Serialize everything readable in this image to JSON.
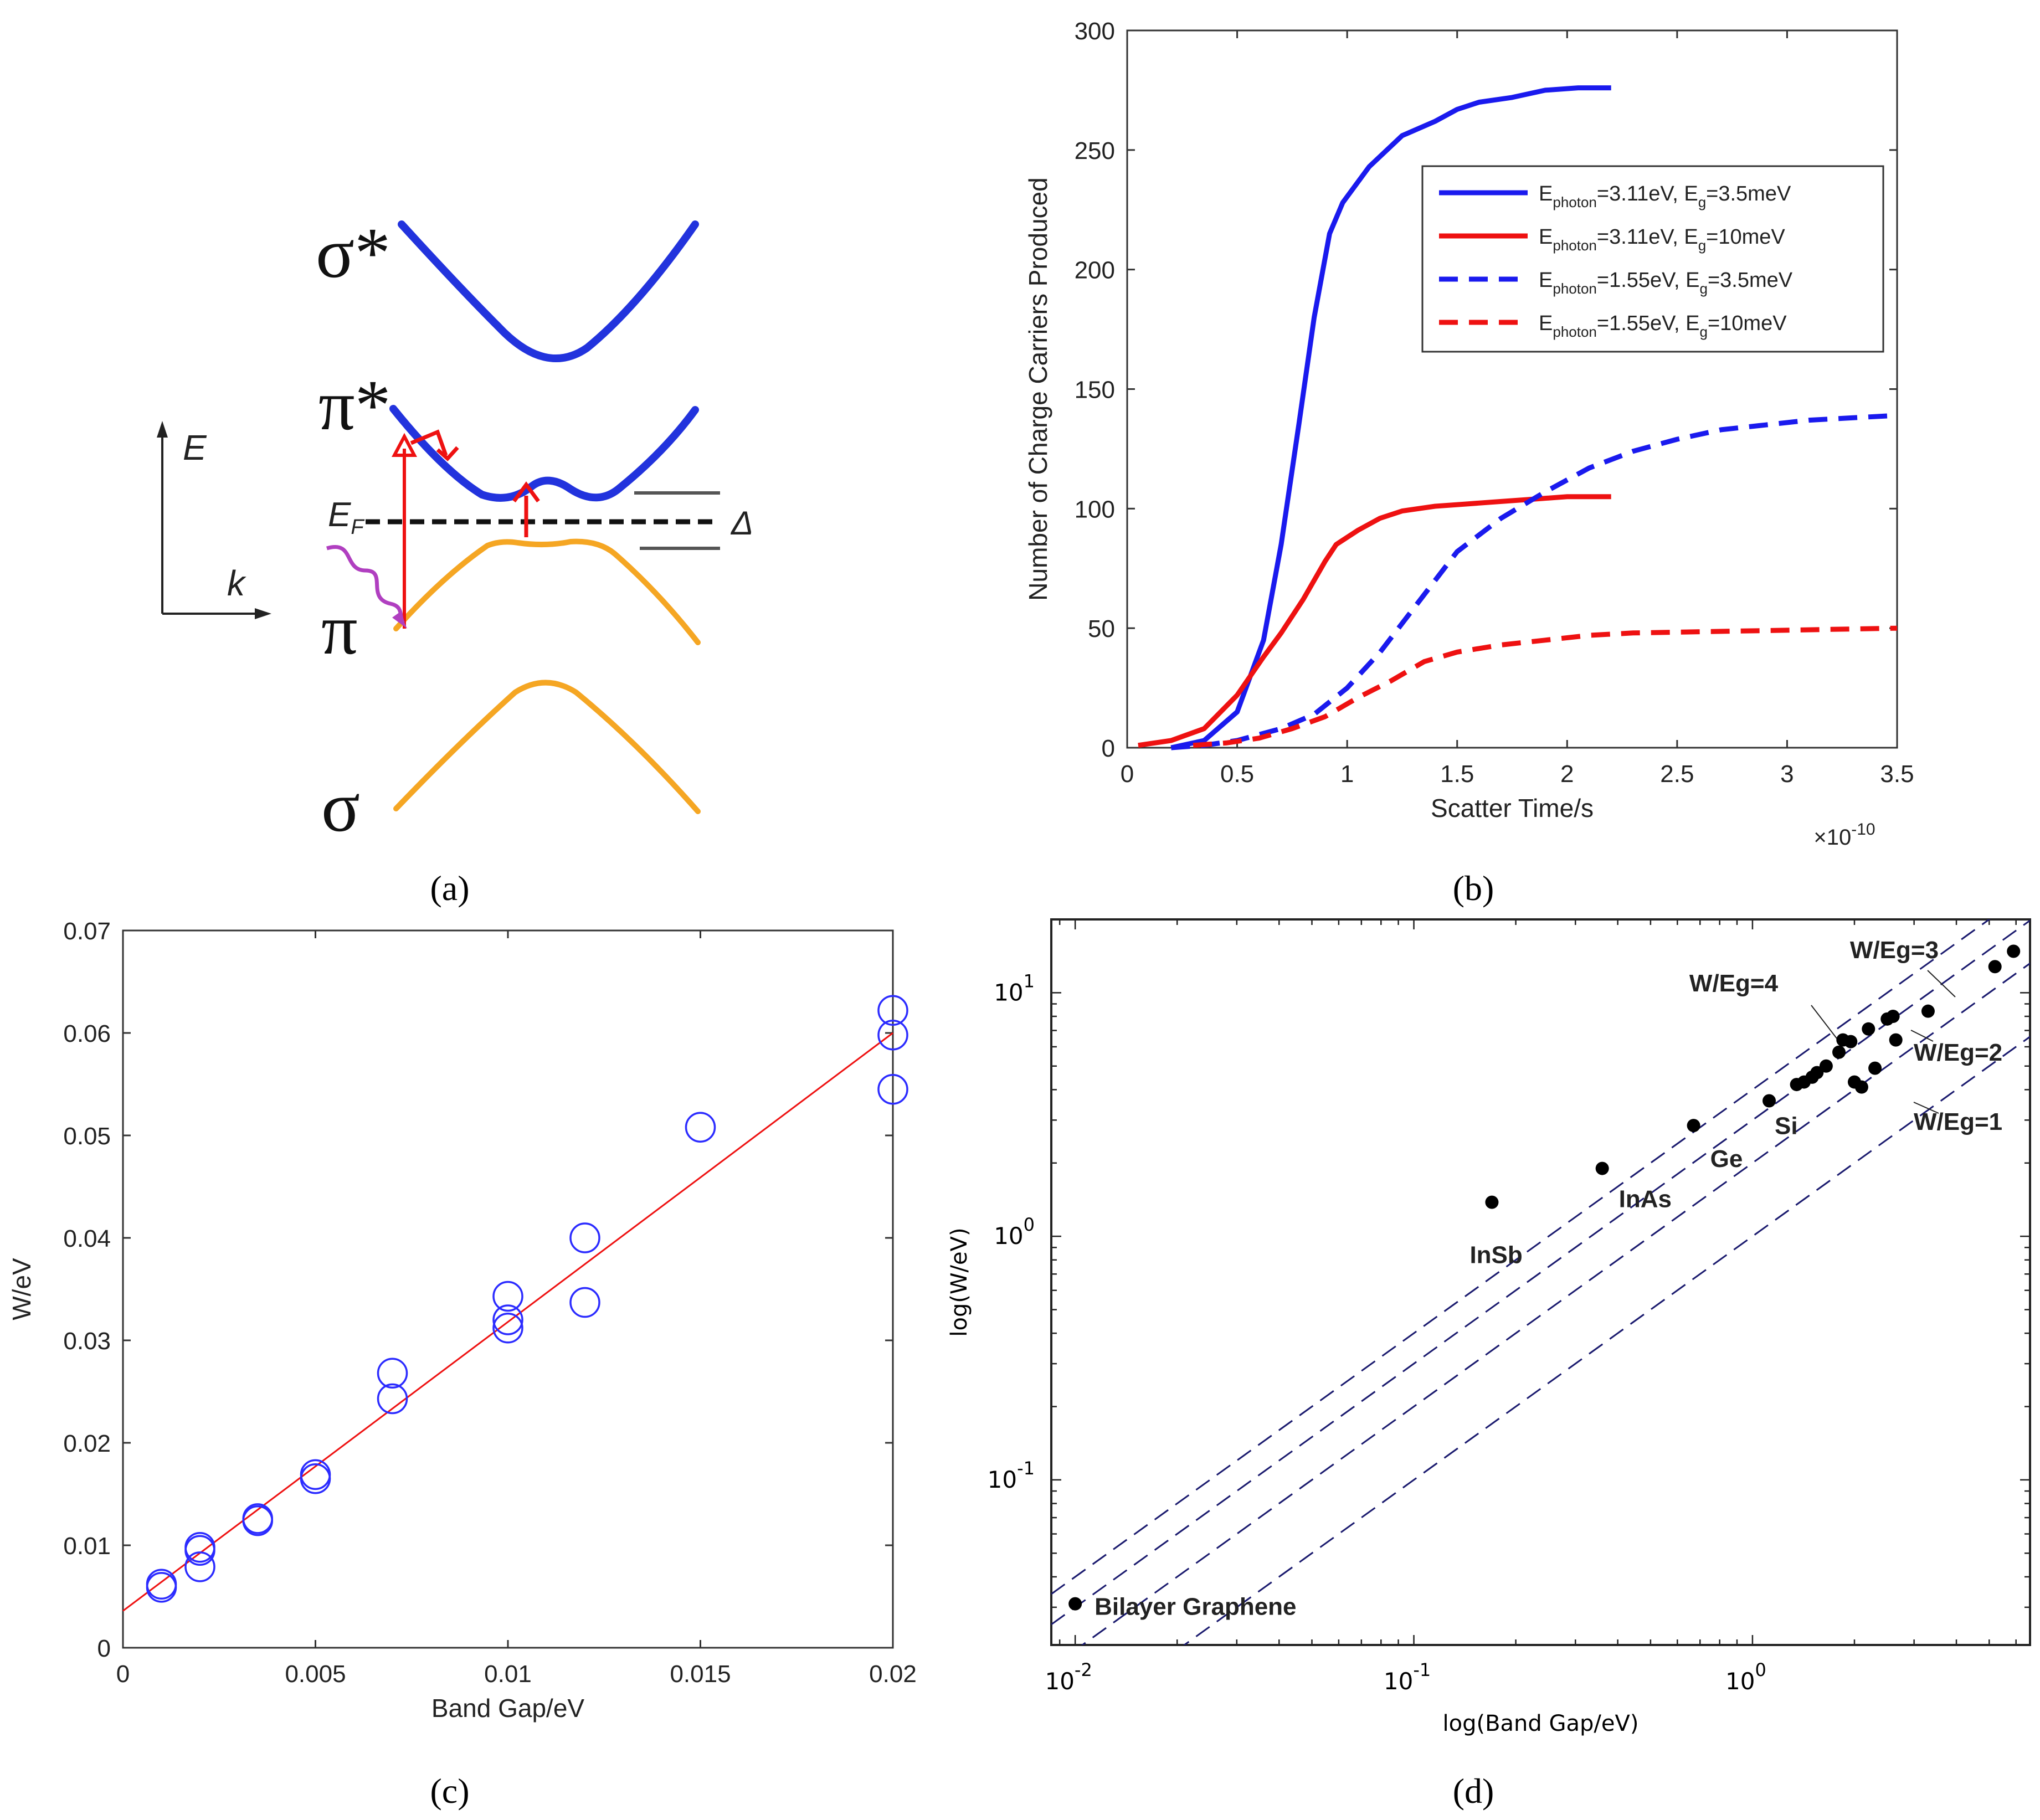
{
  "panel_labels": {
    "a": "(a)",
    "b": "(b)",
    "c": "(c)",
    "d": "(d)"
  },
  "colors": {
    "blue": "#2233dd",
    "red": "#ee1111",
    "orange": "#f5a623",
    "purple": "#b03fc0",
    "navy": "#1a1a6e",
    "circle": "#2b2bff"
  },
  "panel_a": {
    "band_labels": {
      "sigma_star": "σ*",
      "pi_star": "π*",
      "pi": "π",
      "sigma": "σ"
    },
    "axis_e": "E",
    "axis_k": "k",
    "fermi": "E",
    "fermi_sub": "F",
    "gap": "Δ"
  },
  "chart_data": [
    {
      "panel": "b",
      "type": "line",
      "xlabel": "Scatter Time/s",
      "ylabel": "Number of Charge Carriers Produced",
      "x_multiplier": "×10",
      "x_multiplier_exp": "-10",
      "xlim": [
        0,
        3.5
      ],
      "ylim": [
        0,
        300
      ],
      "xticks": [
        0,
        0.5,
        1,
        1.5,
        2,
        2.5,
        3,
        3.5
      ],
      "xtick_labels": [
        "0",
        "0.5",
        "1",
        "1.5",
        "2",
        "2.5",
        "3",
        "3.5"
      ],
      "yticks": [
        0,
        50,
        100,
        150,
        200,
        250,
        300
      ],
      "ytick_labels": [
        "0",
        "50",
        "100",
        "150",
        "200",
        "250",
        "300"
      ],
      "legend": "top-right",
      "series": [
        {
          "name": "E_photon=3.11eV, E_g=3.5meV",
          "label_main": "E",
          "label_sub": "photon",
          "label_mid": "=3.11eV, E",
          "label_sub2": "g",
          "label_end": "=3.5meV",
          "color": "#1a1aee",
          "dash": false,
          "x": [
            0.2,
            0.35,
            0.5,
            0.62,
            0.7,
            0.78,
            0.85,
            0.92,
            0.98,
            1.1,
            1.25,
            1.4,
            1.5,
            1.6,
            1.75,
            1.9,
            2.05,
            2.2
          ],
          "y": [
            0,
            3,
            15,
            45,
            85,
            135,
            180,
            215,
            228,
            243,
            256,
            262,
            267,
            270,
            272,
            275,
            276,
            276
          ]
        },
        {
          "name": "E_photon=3.11eV, E_g=10meV",
          "label_main": "E",
          "label_sub": "photon",
          "label_mid": "=3.11eV, E",
          "label_sub2": "g",
          "label_end": "=10meV",
          "color": "#ee1111",
          "dash": false,
          "x": [
            0.05,
            0.2,
            0.35,
            0.5,
            0.62,
            0.7,
            0.8,
            0.9,
            0.95,
            1.05,
            1.15,
            1.25,
            1.4,
            1.55,
            1.7,
            1.85,
            2.0,
            2.2
          ],
          "y": [
            1,
            3,
            8,
            22,
            38,
            48,
            62,
            78,
            85,
            91,
            96,
            99,
            101,
            102,
            103,
            104,
            105,
            105
          ]
        },
        {
          "name": "E_photon=1.55eV, E_g=3.5meV",
          "label_main": "E",
          "label_sub": "photon",
          "label_mid": "=1.55eV, E",
          "label_sub2": "g",
          "label_end": "=3.5meV",
          "color": "#1a1aee",
          "dash": true,
          "x": [
            0.2,
            0.35,
            0.5,
            0.7,
            0.85,
            1.0,
            1.15,
            1.3,
            1.5,
            1.7,
            1.9,
            2.1,
            2.3,
            2.5,
            2.7,
            2.9,
            3.1,
            3.3,
            3.5
          ],
          "y": [
            0,
            1,
            3,
            8,
            14,
            25,
            40,
            58,
            82,
            96,
            107,
            117,
            124,
            129,
            133,
            135,
            137,
            138,
            139
          ]
        },
        {
          "name": "E_photon=1.55eV, E_g=10meV",
          "label_main": "E",
          "label_sub": "photon",
          "label_mid": "=1.55eV, E",
          "label_sub2": "g",
          "label_end": "=10meV",
          "color": "#ee1111",
          "dash": true,
          "x": [
            0.3,
            0.45,
            0.6,
            0.75,
            0.9,
            1.05,
            1.2,
            1.35,
            1.5,
            1.7,
            1.9,
            2.1,
            2.3,
            2.6,
            2.9,
            3.2,
            3.5
          ],
          "y": [
            1,
            2,
            4,
            8,
            13,
            21,
            28,
            36,
            40,
            43,
            45,
            47,
            48,
            48.5,
            49,
            49.5,
            50
          ]
        }
      ]
    },
    {
      "panel": "c",
      "type": "scatter",
      "xlabel": "Band Gap/eV",
      "ylabel": "W/eV",
      "xlim": [
        0,
        0.02
      ],
      "ylim": [
        0,
        0.07
      ],
      "xticks": [
        0,
        0.005,
        0.01,
        0.015,
        0.02
      ],
      "xtick_labels": [
        "0",
        "0.005",
        "0.01",
        "0.015",
        "0.02"
      ],
      "yticks": [
        0,
        0.01,
        0.02,
        0.03,
        0.04,
        0.05,
        0.06,
        0.07
      ],
      "ytick_labels": [
        "0",
        "0.01",
        "0.02",
        "0.03",
        "0.04",
        "0.05",
        "0.06",
        "0.07"
      ],
      "points": [
        [
          0.001,
          0.0062
        ],
        [
          0.001,
          0.0059
        ],
        [
          0.002,
          0.0098
        ],
        [
          0.002,
          0.0095
        ],
        [
          0.002,
          0.0079
        ],
        [
          0.0035,
          0.0124
        ],
        [
          0.0035,
          0.0126
        ],
        [
          0.005,
          0.0169
        ],
        [
          0.005,
          0.0165
        ],
        [
          0.007,
          0.0268
        ],
        [
          0.007,
          0.0243
        ],
        [
          0.01,
          0.0343
        ],
        [
          0.01,
          0.032
        ],
        [
          0.01,
          0.0312
        ],
        [
          0.012,
          0.04
        ],
        [
          0.012,
          0.0337
        ],
        [
          0.015,
          0.0508
        ],
        [
          0.02,
          0.0622
        ],
        [
          0.02,
          0.0598
        ],
        [
          0.02,
          0.0545
        ]
      ],
      "fit_line": {
        "x": [
          0,
          0.02
        ],
        "y": [
          0.0036,
          0.06
        ],
        "color": "#ee1111"
      }
    },
    {
      "panel": "d",
      "type": "scatter",
      "scale": "log-log",
      "xlabel": "log(Band Gap/eV)",
      "ylabel": "log(W/eV)",
      "xlim": [
        0.0085,
        6.6
      ],
      "ylim": [
        0.021,
        20
      ],
      "xtick_base": [
        "10",
        "10",
        "10"
      ],
      "xtick_exp": [
        "-2",
        "-1",
        "0"
      ],
      "xtick_values": [
        0.01,
        0.1,
        1
      ],
      "ytick_base": [
        "10",
        "10",
        "10"
      ],
      "ytick_exp": [
        "-1",
        "0",
        "1"
      ],
      "ytick_values": [
        0.1,
        1,
        10
      ],
      "ref_lines": [
        {
          "ratio": 4,
          "label": "W/Eg=4"
        },
        {
          "ratio": 3,
          "label": "W/Eg=3"
        },
        {
          "ratio": 2,
          "label": "W/Eg=2"
        },
        {
          "ratio": 1,
          "label": "W/Eg=1"
        }
      ],
      "points": [
        [
          0.01,
          0.031
        ],
        [
          0.17,
          1.38
        ],
        [
          0.36,
          1.9
        ],
        [
          0.67,
          2.85
        ],
        [
          1.12,
          3.6
        ],
        [
          1.35,
          4.2
        ],
        [
          1.42,
          4.3
        ],
        [
          1.5,
          4.5
        ],
        [
          1.55,
          4.7
        ],
        [
          1.65,
          5.0
        ],
        [
          1.8,
          5.7
        ],
        [
          1.85,
          6.4
        ],
        [
          1.95,
          6.3
        ],
        [
          2.0,
          4.3
        ],
        [
          2.1,
          4.1
        ],
        [
          2.2,
          7.1
        ],
        [
          2.3,
          4.9
        ],
        [
          2.5,
          7.8
        ],
        [
          2.6,
          8.0
        ],
        [
          2.65,
          6.4
        ],
        [
          3.3,
          8.4
        ],
        [
          5.2,
          12.8
        ],
        [
          5.9,
          14.8
        ]
      ],
      "point_labels": [
        {
          "name": "Bilayer Graphene",
          "x": 0.01,
          "y": 0.031
        },
        {
          "name": "InSb",
          "x": 0.17,
          "y": 1.38
        },
        {
          "name": "InAs",
          "x": 0.36,
          "y": 1.9
        },
        {
          "name": "Ge",
          "x": 0.67,
          "y": 2.85
        },
        {
          "name": "Si",
          "x": 1.12,
          "y": 3.6
        }
      ]
    }
  ]
}
